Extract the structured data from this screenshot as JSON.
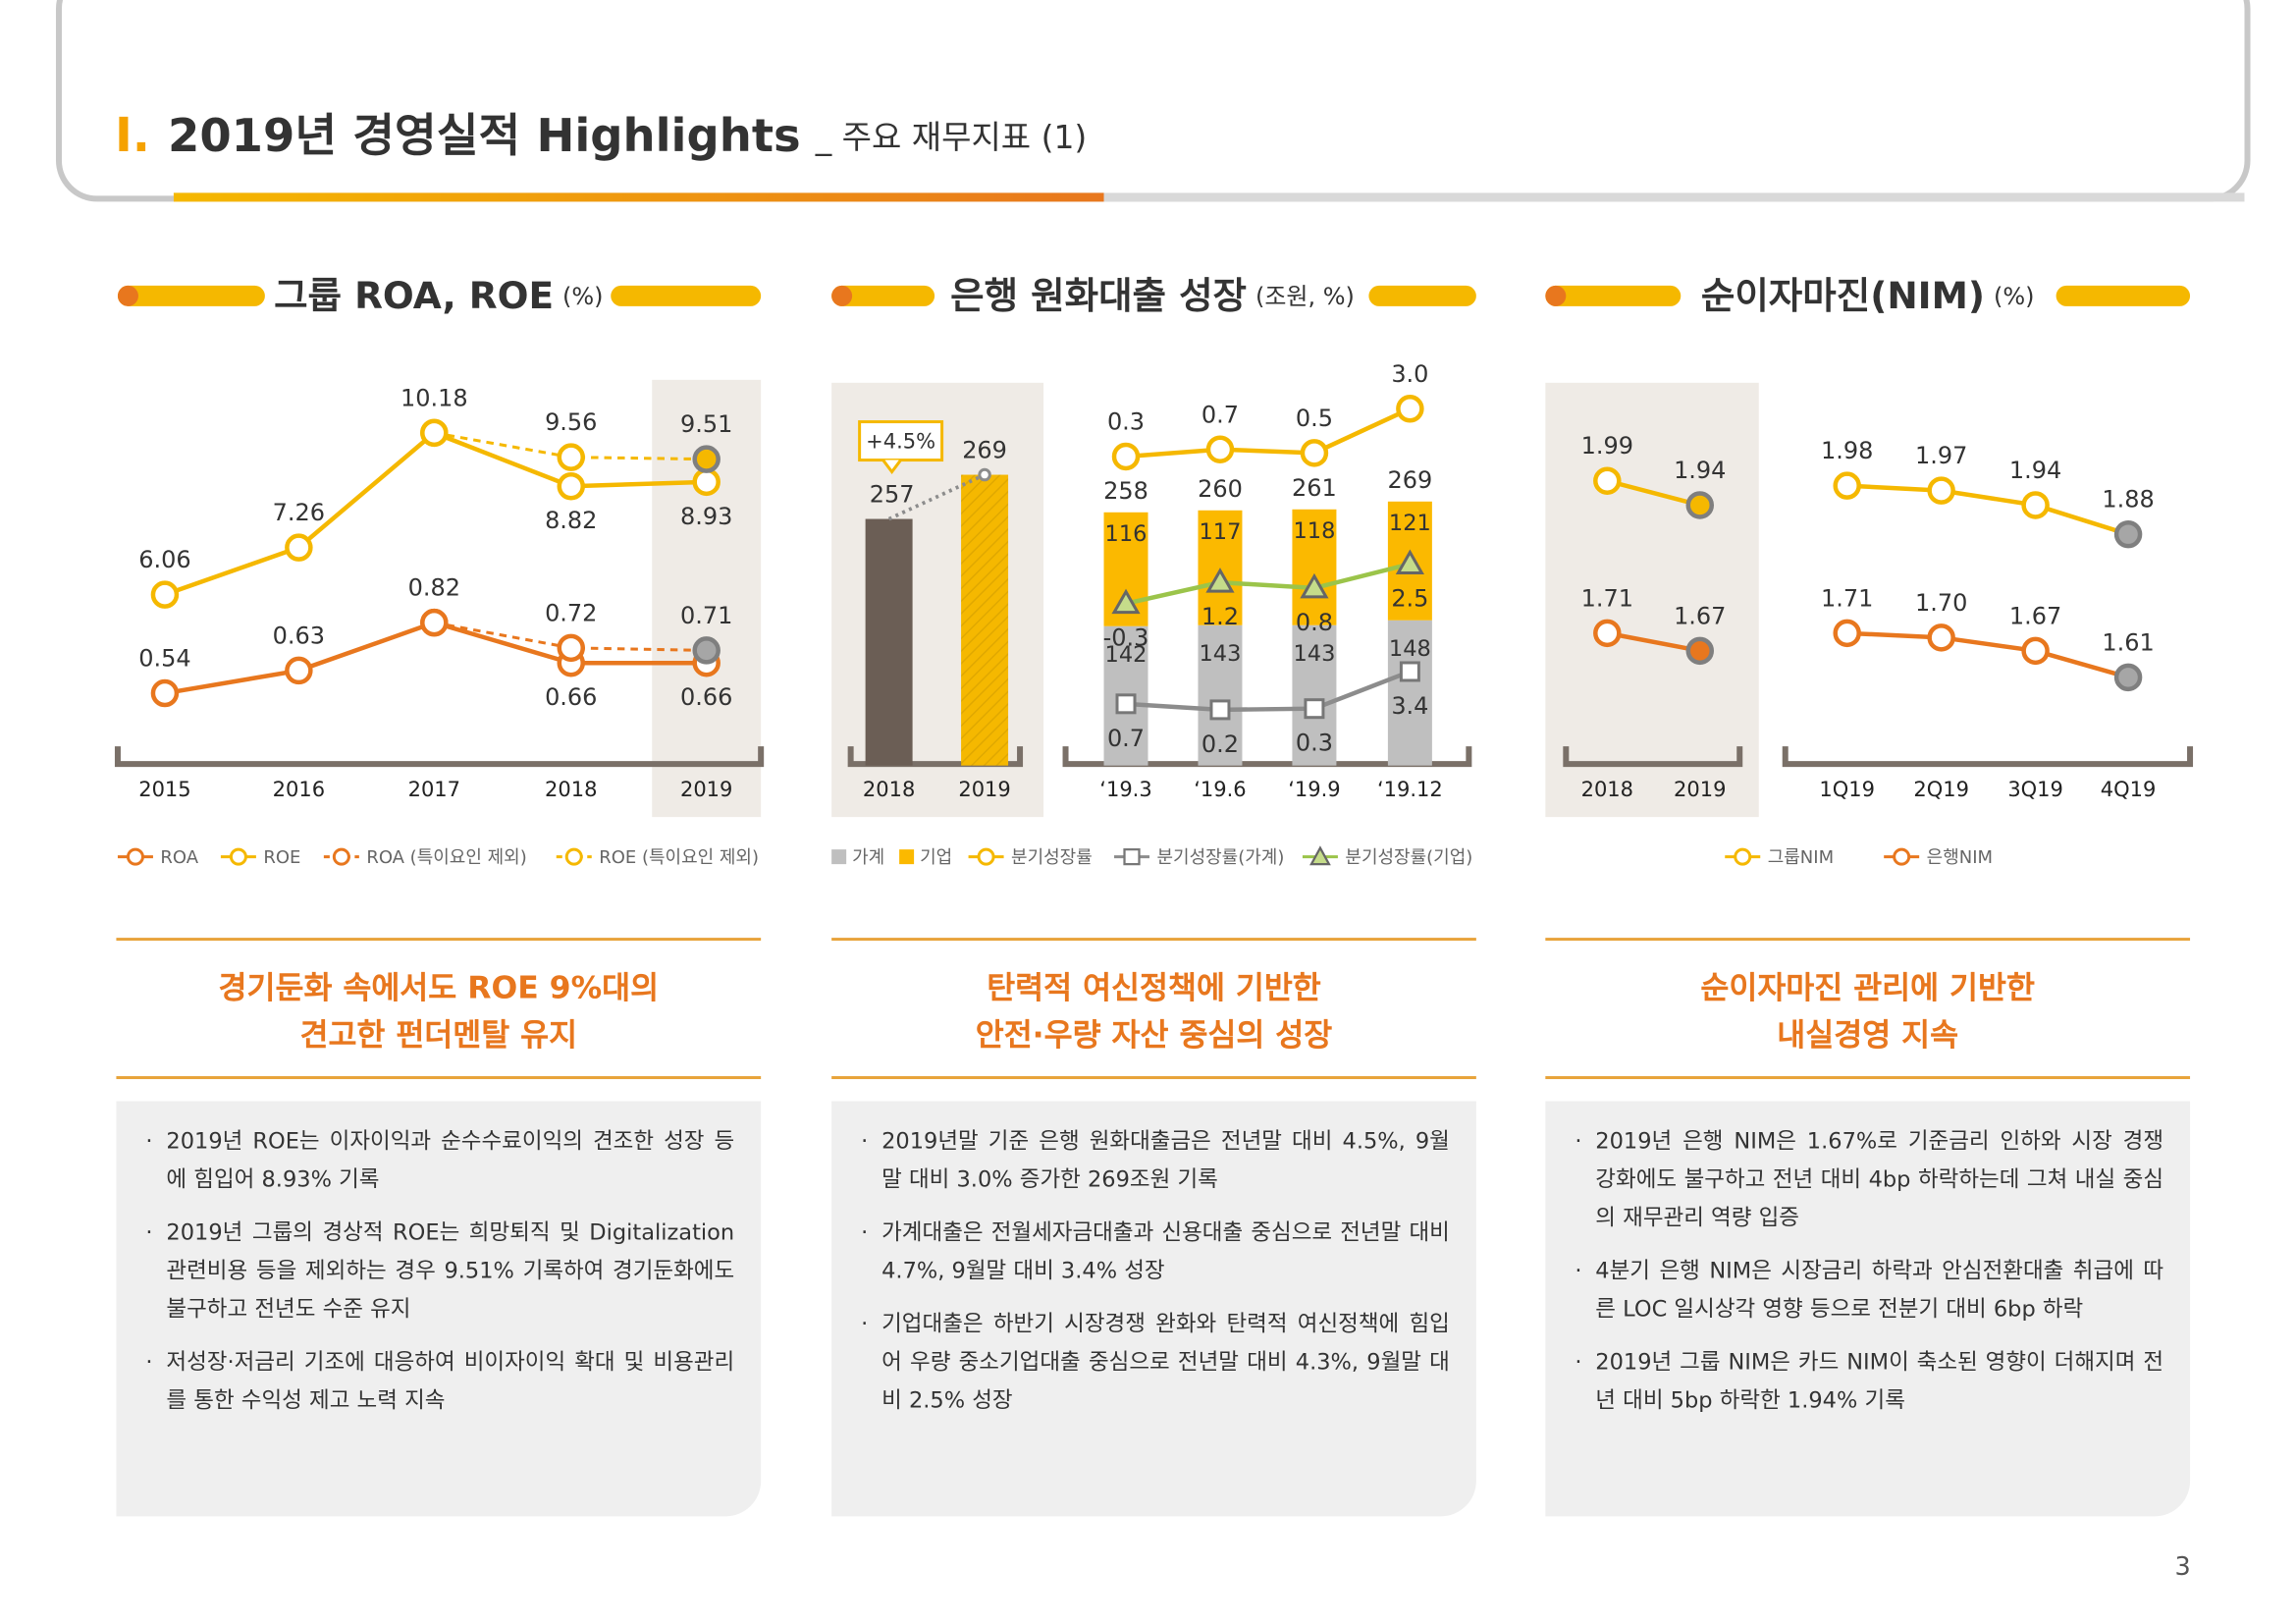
{
  "header": {
    "section": "I.",
    "title": "2019년 경영실적 Highlights",
    "subtitle": "_ 주요 재무지표 (1)"
  },
  "chart_data": [
    {
      "type": "line",
      "title": "그룹 ROA, ROE",
      "unit": "(%)",
      "categories": [
        "2015",
        "2016",
        "2017",
        "2018",
        "2019"
      ],
      "highlight": "2019",
      "series": [
        {
          "name": "ROA",
          "color": "#e8771e",
          "values": [
            0.54,
            0.63,
            0.82,
            0.66,
            0.66
          ],
          "ylim": [
            0.37,
            1.83
          ]
        },
        {
          "name": "ROE",
          "color": "#f5b800",
          "values": [
            6.06,
            7.26,
            10.18,
            8.82,
            8.93
          ],
          "ylim": [
            2.46,
            11.83
          ]
        },
        {
          "name": "ROA (특이요인 제외)",
          "color": "#e8771e",
          "dash": true,
          "last_fill": "#a6a6a6",
          "values": [
            null,
            null,
            0.82,
            0.72,
            0.71
          ],
          "value_labels": [
            null,
            null,
            null,
            "0.72",
            "0.71"
          ],
          "ylim": [
            0.37,
            1.83
          ]
        },
        {
          "name": "ROE (특이요인 제외)",
          "color": "#f5b800",
          "dash": true,
          "last_fill": "#f5b800",
          "values": [
            null,
            null,
            10.18,
            9.56,
            9.51
          ],
          "value_labels": [
            null,
            null,
            null,
            "9.56",
            "9.51"
          ],
          "ylim": [
            2.46,
            11.83
          ]
        }
      ]
    },
    {
      "type": "bar",
      "title": "은행 원화대출 성장",
      "unit": "(조원, %)",
      "categories": [
        "2018",
        "2019"
      ],
      "values": [
        257,
        269
      ],
      "colors": [
        "#6b5e55",
        "#f5b800"
      ],
      "ylim": [
        190,
        298
      ],
      "annotation": "+4.5%",
      "highlight": true
    },
    {
      "type": "stacked_bar",
      "categories": [
        "‘19.3",
        "‘19.6",
        "‘19.9",
        "‘19.12"
      ],
      "ylim": [
        0,
        375
      ],
      "totals": [
        258,
        260,
        261,
        269
      ],
      "series": [
        {
          "name": "가계",
          "color": "#bfbfbf",
          "values": [
            142,
            143,
            143,
            148
          ]
        },
        {
          "name": "기업",
          "color": "#fbb900",
          "values": [
            116,
            117,
            118,
            121
          ]
        },
        {
          "name": "분기성장률",
          "type": "line",
          "color": "#f5b800",
          "values": [
            0.3,
            0.7,
            0.5,
            3.0
          ],
          "value_labels": [
            "0.3",
            "0.7",
            "0.5",
            "3.0"
          ],
          "ylim": [
            -15.5,
            5.3
          ]
        },
        {
          "name": "분기성장률(가계)",
          "type": "line",
          "marker": "square",
          "color": "#8c8c8c",
          "label_position": "below",
          "values": [
            0.7,
            0.2,
            0.3,
            3.4
          ],
          "ylim": [
            -2.0,
            28.8
          ]
        },
        {
          "name": "분기성장률(기업)",
          "type": "line",
          "marker": "triangle",
          "color": "#9bc44a",
          "label_position": "below",
          "values": [
            -0.3,
            1.2,
            0.8,
            2.5
          ],
          "ylim": [
            -9.7,
            16.4
          ]
        }
      ]
    },
    {
      "type": "line",
      "title": "순이자마진(NIM)",
      "unit": "(%)",
      "categories": [
        "2018",
        "2019"
      ],
      "highlight": true,
      "series": [
        {
          "color": "#f5b800",
          "last_fill": "#f5b800",
          "values": [
            1.99,
            1.94
          ],
          "ylim": [
            1.465,
            2.222
          ]
        },
        {
          "color": "#e8771e",
          "last_fill": "#e8771e",
          "values": [
            1.71,
            1.67
          ],
          "ylim": [
            1.477,
            2.31
          ]
        }
      ]
    },
    {
      "type": "line",
      "categories": [
        "1Q19",
        "2Q19",
        "3Q19",
        "4Q19"
      ],
      "series": [
        {
          "name": "그룹NIM",
          "color": "#f5b800",
          "last_fill": "#a6a6a6",
          "values": [
            1.98,
            1.97,
            1.94,
            1.88
          ],
          "ylim": [
            1.465,
            2.222
          ]
        },
        {
          "name": "은행NIM",
          "color": "#e8771e",
          "last_fill": "#a6a6a6",
          "values": [
            1.71,
            1.7,
            1.67,
            1.61
          ],
          "value_labels": [
            "1.71",
            "1.70",
            "1.67",
            "1.61"
          ],
          "ylim": [
            1.477,
            2.31
          ]
        }
      ]
    }
  ],
  "panels": [
    {
      "headline": [
        "경기둔화 속에서도 ROE 9%대의",
        "견고한 펀더멘탈 유지"
      ],
      "bullets": [
        "2019년 ROE는 이자이익과 순수수료이익의 견조한 성장 등에 힘입어 8.93% 기록",
        "2019년 그룹의 경상적 ROE는 희망퇴직 및 Digitalization 관련비용 등을 제외하는 경우 9.51% 기록하여 경기둔화에도 불구하고 전년도 수준 유지",
        "저성장·저금리 기조에 대응하여 비이자이익 확대 및 비용관리를 통한 수익성 제고 노력 지속"
      ]
    },
    {
      "headline": [
        "탄력적 여신정책에 기반한",
        "안전·우량 자산 중심의 성장"
      ],
      "bullets": [
        "2019년말 기준 은행 원화대출금은 전년말 대비 4.5%, 9월말 대비 3.0% 증가한 269조원 기록",
        "가계대출은 전월세자금대출과 신용대출 중심으로 전년말 대비 4.7%, 9월말 대비 3.4% 성장",
        "기업대출은 하반기 시장경쟁 완화와 탄력적 여신정책에 힘입어 우량 중소기업대출 중심으로 전년말 대비 4.3%, 9월말 대비 2.5% 성장"
      ]
    },
    {
      "headline": [
        "순이자마진 관리에 기반한",
        "내실경영 지속"
      ],
      "bullets": [
        "2019년 은행 NIM은 1.67%로 기준금리 인하와 시장 경쟁 강화에도 불구하고 전년 대비 4bp 하락하는데 그쳐 내실 중심의 재무관리 역량 입증",
        "4분기 은행 NIM은 시장금리 하락과 안심전환대출 취급에 따른 LOC 일시상각 영향 등으로 전분기 대비 6bp 하락",
        "2019년 그룹 NIM은 카드 NIM이 축소된 영향이 더해지며 전년 대비 5bp 하락한 1.94% 기록"
      ]
    }
  ],
  "page_number": 3
}
